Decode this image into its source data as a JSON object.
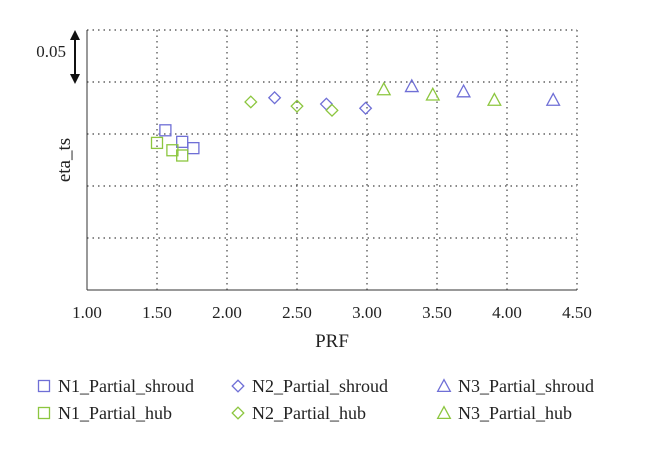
{
  "chart_data": {
    "type": "scatter",
    "title": "",
    "xlabel": "PRF",
    "ylabel": "eta_ts",
    "xlim": [
      1.0,
      4.5
    ],
    "x_ticks": [
      "1.00",
      "1.50",
      "2.00",
      "2.50",
      "3.00",
      "3.50",
      "4.00",
      "4.50"
    ],
    "y_ticks_labeled": false,
    "grid": "dotted",
    "scale_annotation": {
      "label": "0.05",
      "span": 0.05
    },
    "legend_position": "bottom",
    "series": [
      {
        "name": "N1_Partial_shroud",
        "marker": "square",
        "color": "#6f6fd6",
        "points": [
          [
            1.56,
            0.064
          ],
          [
            1.68,
            0.053
          ],
          [
            1.76,
            0.047
          ]
        ]
      },
      {
        "name": "N2_Partial_shroud",
        "marker": "diamond",
        "color": "#6f6fd6",
        "points": [
          [
            2.34,
            0.095
          ],
          [
            2.71,
            0.089
          ],
          [
            2.99,
            0.085
          ]
        ]
      },
      {
        "name": "N3_Partial_shroud",
        "marker": "triangle",
        "color": "#6f6fd6",
        "points": [
          [
            3.32,
            0.106
          ],
          [
            3.69,
            0.101
          ],
          [
            4.33,
            0.093
          ]
        ]
      },
      {
        "name": "N1_Partial_hub",
        "marker": "square",
        "color": "#8cc63f",
        "points": [
          [
            1.5,
            0.052
          ],
          [
            1.61,
            0.045
          ],
          [
            1.68,
            0.04
          ]
        ]
      },
      {
        "name": "N2_Partial_hub",
        "marker": "diamond",
        "color": "#8cc63f",
        "points": [
          [
            2.17,
            0.091
          ],
          [
            2.5,
            0.087
          ],
          [
            2.75,
            0.083
          ]
        ]
      },
      {
        "name": "N3_Partial_hub",
        "marker": "triangle",
        "color": "#8cc63f",
        "points": [
          [
            3.12,
            0.103
          ],
          [
            3.47,
            0.098
          ],
          [
            3.91,
            0.093
          ]
        ]
      }
    ]
  }
}
